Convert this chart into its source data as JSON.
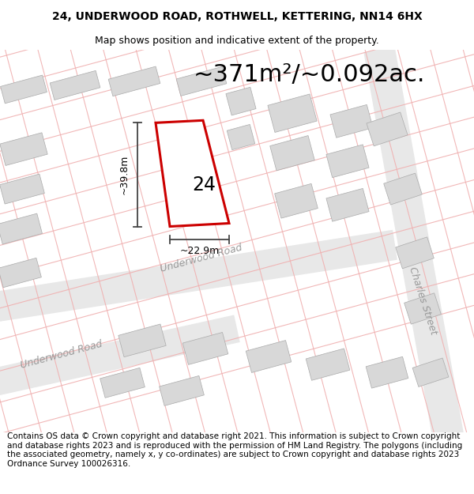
{
  "title_line1": "24, UNDERWOOD ROAD, ROTHWELL, KETTERING, NN14 6HX",
  "title_line2": "Map shows position and indicative extent of the property.",
  "area_text": "~371m²/~0.092ac.",
  "plot_number": "24",
  "dim_width": "~22.9m",
  "dim_height": "~39.8m",
  "road_label1": "Underwood Road",
  "road_label2": "Charles Street",
  "road_label3": "Underwood Road",
  "footer_text": "Contains OS data © Crown copyright and database right 2021. This information is subject to Crown copyright and database rights 2023 and is reproduced with the permission of HM Land Registry. The polygons (including the associated geometry, namely x, y co-ordinates) are subject to Crown copyright and database rights 2023 Ordnance Survey 100026316.",
  "bg_color": "#ffffff",
  "map_bg": "#ffffff",
  "plot_fill": "#ffffff",
  "plot_edge": "#cc0000",
  "road_line_color": "#f0b0b0",
  "road_area_color": "#ececec",
  "building_fill": "#d8d8d8",
  "building_edge": "#aaaaaa",
  "dim_line_color": "#444444",
  "title_fontsize": 10,
  "subtitle_fontsize": 9,
  "area_fontsize": 22,
  "footer_fontsize": 7.5,
  "grid_line_color": "#f0b0b0",
  "grid_line_alpha": 0.9,
  "road_label_color": "#999999"
}
